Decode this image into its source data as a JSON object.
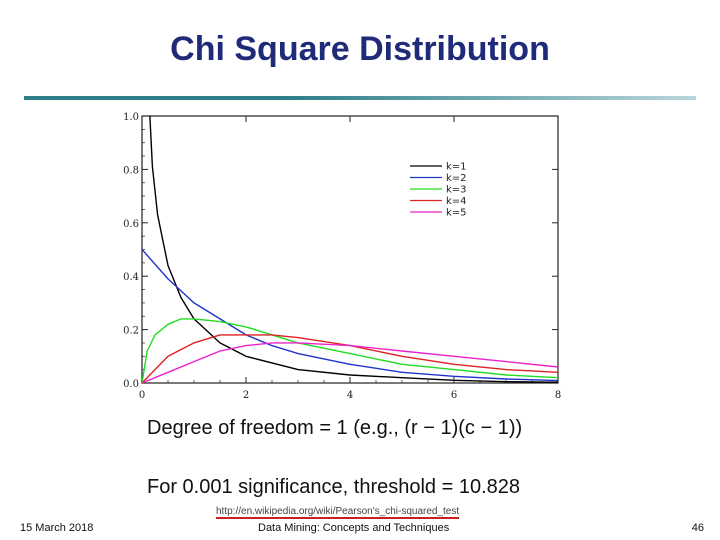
{
  "slide": {
    "title": "Chi Square Distribution",
    "caption_line1": "Degree of freedom = 1  (e.g., (r − 1)(c − 1))",
    "caption_line2": "For 0.001 significance, threshold = 10.828",
    "link_text": "http://en.wikipedia.org/wiki/Pearson's_chi-squared_test",
    "footer_date": "15 March 2018",
    "footer_center": "Data Mining: Concepts and Techniques",
    "page_number": "46"
  },
  "chart_data": {
    "type": "line",
    "title": "",
    "xlabel": "",
    "ylabel": "",
    "xlim": [
      0,
      8
    ],
    "ylim": [
      0,
      1.0
    ],
    "x_ticks": [
      0,
      2,
      4,
      6,
      8
    ],
    "x_tick_labels": [
      "0",
      "2",
      "4",
      "6",
      "8"
    ],
    "y_ticks": [
      0,
      0.2,
      0.4,
      0.6,
      0.8,
      1.0
    ],
    "y_tick_labels": [
      "0.0",
      "0.2",
      "0.4",
      "0.6",
      "0.8",
      "1.0"
    ],
    "legend_position": "top-right",
    "grid": false,
    "series": [
      {
        "name": "k=1",
        "color": "#000000",
        "x": [
          0.1,
          0.2,
          0.3,
          0.5,
          0.75,
          1,
          1.5,
          2,
          3,
          4,
          5,
          6,
          7,
          8
        ],
        "y": [
          1.2,
          0.81,
          0.63,
          0.44,
          0.32,
          0.24,
          0.15,
          0.1,
          0.05,
          0.03,
          0.02,
          0.01,
          0.005,
          0.003
        ]
      },
      {
        "name": "k=2",
        "color": "#2233cc",
        "x": [
          0,
          0.5,
          1,
          1.5,
          2,
          2.5,
          3,
          4,
          5,
          6,
          7,
          8
        ],
        "y": [
          0.5,
          0.39,
          0.3,
          0.24,
          0.18,
          0.14,
          0.11,
          0.07,
          0.04,
          0.025,
          0.015,
          0.009
        ]
      },
      {
        "name": "k=3",
        "color": "#22dd22",
        "x": [
          0,
          0.1,
          0.25,
          0.5,
          0.75,
          1,
          1.5,
          2,
          2.5,
          3,
          4,
          5,
          6,
          7,
          8
        ],
        "y": [
          0,
          0.12,
          0.18,
          0.22,
          0.24,
          0.24,
          0.23,
          0.21,
          0.18,
          0.15,
          0.11,
          0.07,
          0.05,
          0.03,
          0.02
        ]
      },
      {
        "name": "k=4",
        "color": "#dd2222",
        "x": [
          0,
          0.5,
          1,
          1.5,
          2,
          2.5,
          3,
          4,
          5,
          6,
          7,
          8
        ],
        "y": [
          0,
          0.1,
          0.15,
          0.18,
          0.18,
          0.18,
          0.17,
          0.14,
          0.1,
          0.07,
          0.05,
          0.04
        ]
      },
      {
        "name": "k=5",
        "color": "#ee22cc",
        "x": [
          0,
          0.5,
          1,
          1.5,
          2,
          2.5,
          3,
          4,
          5,
          6,
          7,
          8
        ],
        "y": [
          0,
          0.04,
          0.08,
          0.12,
          0.14,
          0.15,
          0.15,
          0.14,
          0.12,
          0.1,
          0.08,
          0.06
        ]
      }
    ]
  }
}
